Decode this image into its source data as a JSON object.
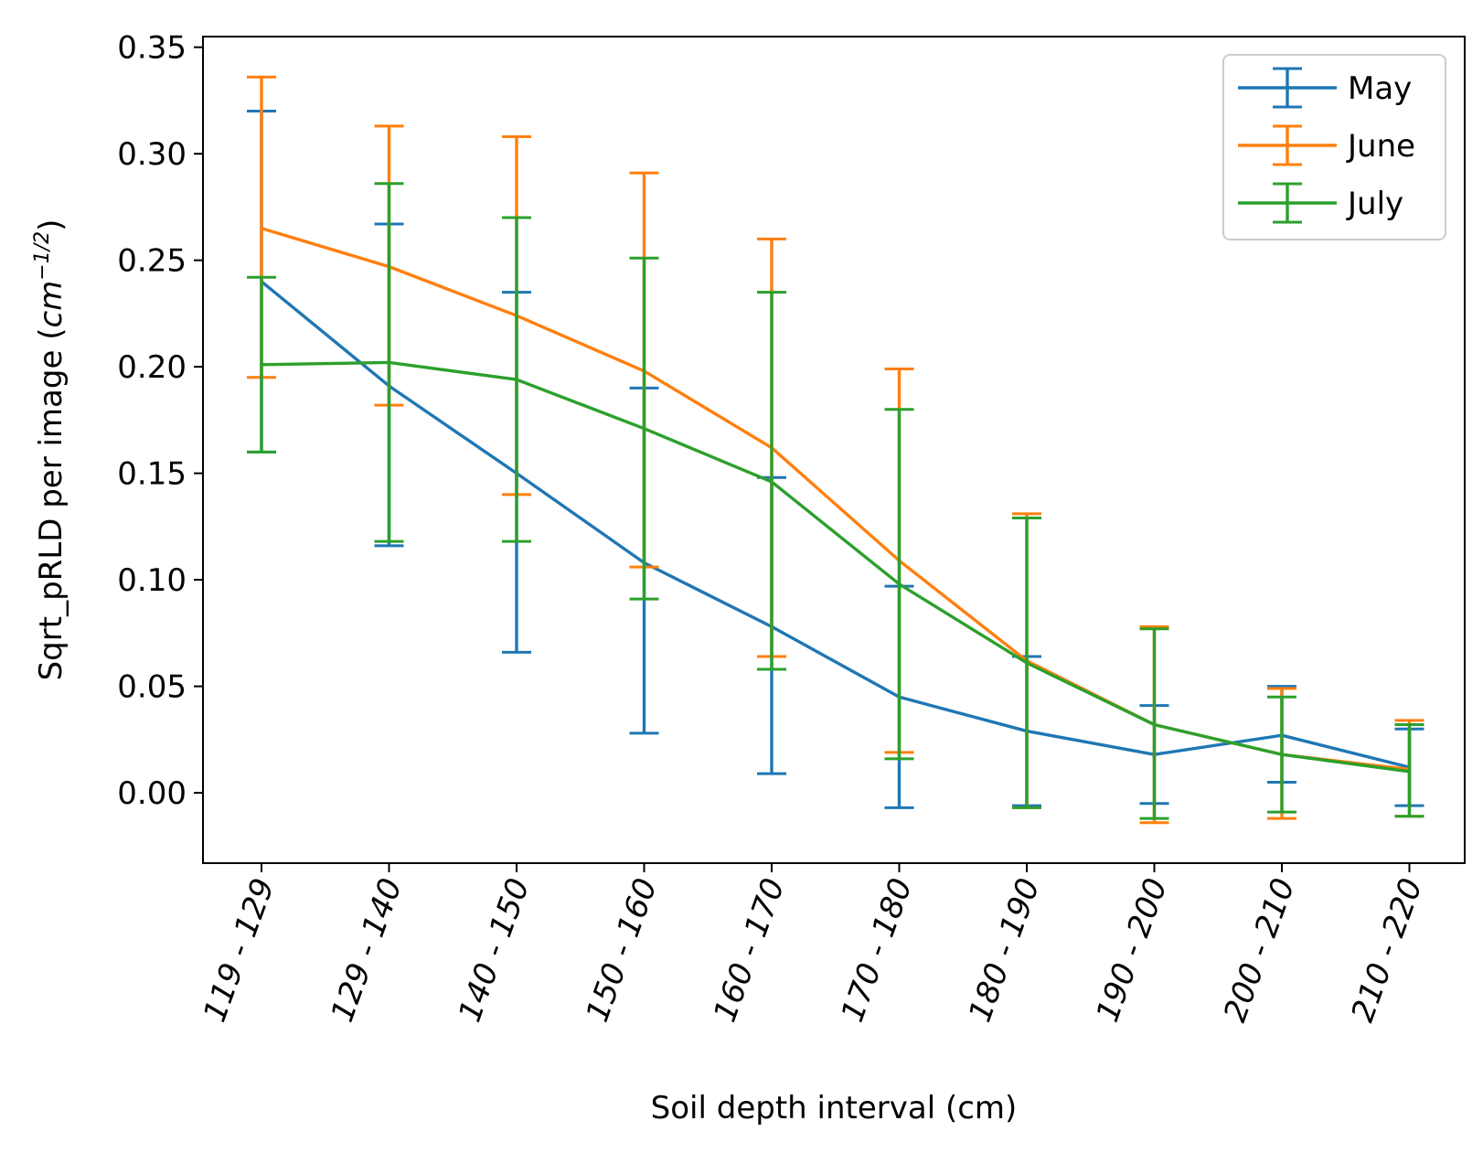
{
  "chart_data": {
    "type": "line",
    "error_bars": true,
    "title": "",
    "xlabel": "Soil depth interval (cm)",
    "ylabel": {
      "prefix": "Sqrt_pRLD per image (",
      "unit_base": "cm",
      "unit_exponent": "−1/2",
      "suffix": ")"
    },
    "ylim": [
      -0.033,
      0.355
    ],
    "yticks": [
      "0.00",
      "0.05",
      "0.10",
      "0.15",
      "0.20",
      "0.25",
      "0.30",
      "0.35"
    ],
    "ytick_values": [
      0.0,
      0.05,
      0.1,
      0.15,
      0.2,
      0.25,
      0.3,
      0.35
    ],
    "categories": [
      "119 - 129",
      "129 - 140",
      "140 - 150",
      "150 - 160",
      "160 - 170",
      "170 - 180",
      "180 - 190",
      "190 - 200",
      "200 - 210",
      "210 - 220"
    ],
    "legend": {
      "placement": "top-right"
    },
    "grid": false,
    "series": [
      {
        "name": "May",
        "color": "#1f77b4",
        "values": [
          0.24,
          0.191,
          0.15,
          0.108,
          0.078,
          0.045,
          0.029,
          0.018,
          0.027,
          0.012
        ],
        "err_low": [
          0.16,
          0.116,
          0.066,
          0.028,
          0.009,
          -0.007,
          -0.006,
          -0.005,
          0.005,
          -0.006
        ],
        "err_high": [
          0.32,
          0.267,
          0.235,
          0.19,
          0.148,
          0.097,
          0.064,
          0.041,
          0.05,
          0.03
        ]
      },
      {
        "name": "June",
        "color": "#ff7f0e",
        "values": [
          0.265,
          0.247,
          0.224,
          0.198,
          0.162,
          0.109,
          0.062,
          0.032,
          0.018,
          0.011
        ],
        "err_low": [
          0.195,
          0.182,
          0.14,
          0.106,
          0.064,
          0.019,
          -0.007,
          -0.014,
          -0.012,
          -0.011
        ],
        "err_high": [
          0.336,
          0.313,
          0.308,
          0.291,
          0.26,
          0.199,
          0.131,
          0.078,
          0.049,
          0.034
        ]
      },
      {
        "name": "July",
        "color": "#2ca02c",
        "values": [
          0.201,
          0.202,
          0.194,
          0.171,
          0.146,
          0.098,
          0.061,
          0.032,
          0.018,
          0.01
        ],
        "err_low": [
          0.16,
          0.118,
          0.118,
          0.091,
          0.058,
          0.016,
          -0.007,
          -0.012,
          -0.009,
          -0.011
        ],
        "err_high": [
          0.242,
          0.286,
          0.27,
          0.251,
          0.235,
          0.18,
          0.129,
          0.077,
          0.045,
          0.032
        ]
      }
    ]
  }
}
